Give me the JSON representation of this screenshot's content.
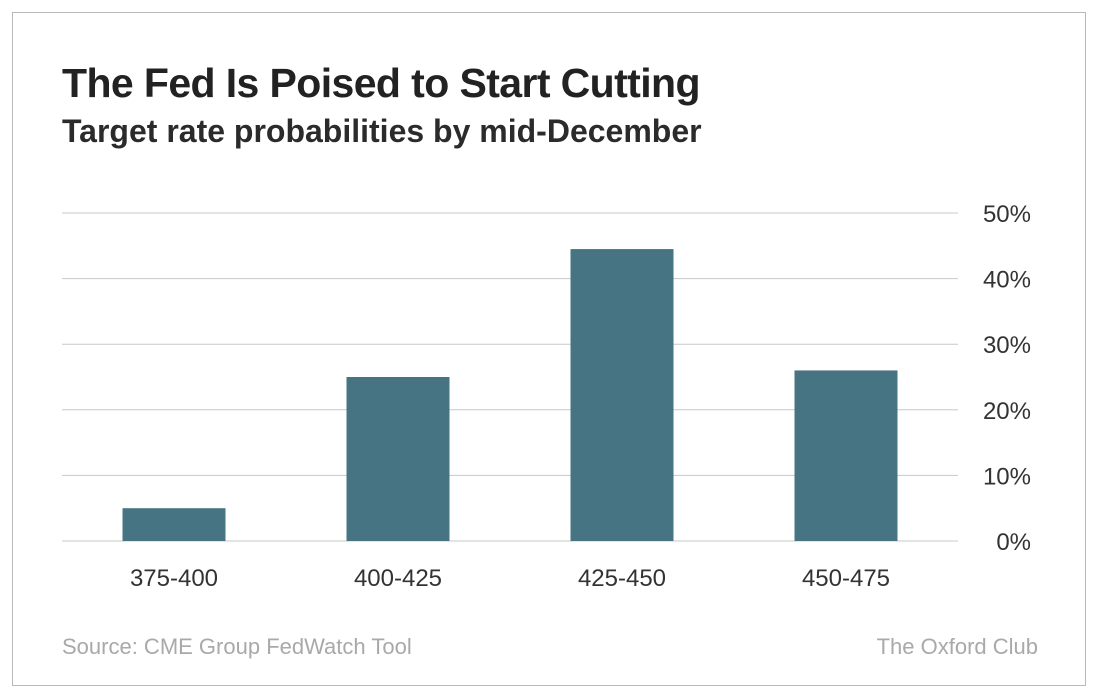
{
  "header": {
    "title": "The Fed Is Poised to Start Cutting",
    "subtitle": "Target rate probabilities by mid-December"
  },
  "footer": {
    "source": "Source: CME Group FedWatch Tool",
    "brand": "The Oxford Club"
  },
  "colors": {
    "bar": "#477482",
    "grid": "#c8c8c8",
    "axis_text": "#333333",
    "footer_text": "#a9a9a9"
  },
  "chart_data": {
    "type": "bar",
    "title": "The Fed Is Poised to Start Cutting",
    "subtitle": "Target rate probabilities by mid-December",
    "categories": [
      "375-400",
      "400-425",
      "425-450",
      "450-475"
    ],
    "values": [
      5,
      25,
      44.5,
      26
    ],
    "ylim": [
      0,
      50
    ],
    "yticks": [
      "0%",
      "10%",
      "20%",
      "30%",
      "40%",
      "50%"
    ],
    "ytick_values": [
      0,
      10,
      20,
      30,
      40,
      50
    ],
    "yaxis_position": "right",
    "grid": true,
    "legend": "none"
  }
}
